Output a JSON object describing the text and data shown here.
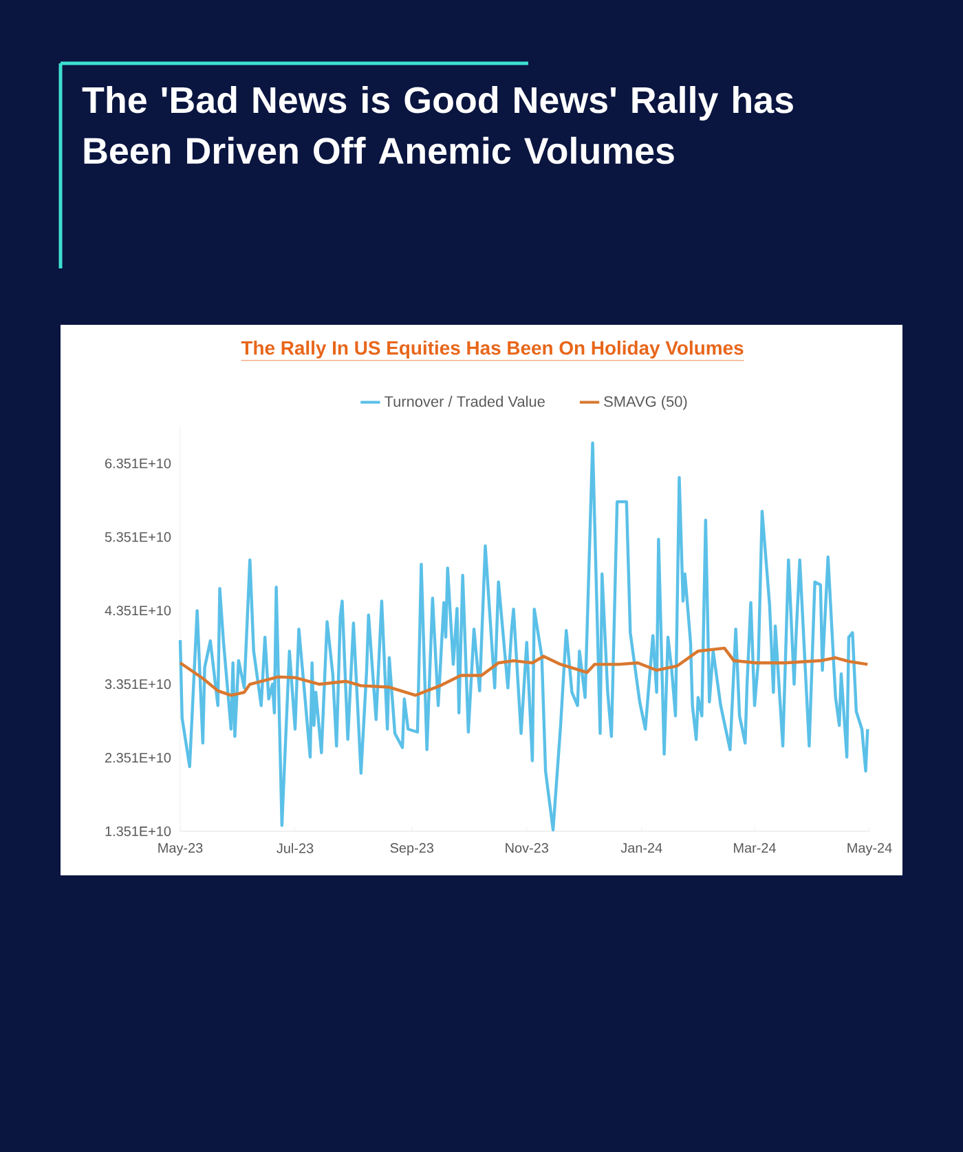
{
  "chart_data": {
    "type": "line",
    "title": "The 'Bad News is Good News' Rally has Been Driven Off Anemic Volumes",
    "subtitle": "The Rally In US Equities Has Been On Holiday Volumes",
    "xlim": [
      "2023-05-01",
      "2024-05-01"
    ],
    "xticks": [
      {
        "value": "2023-05-01",
        "label": "May-23"
      },
      {
        "value": "2023-07-01",
        "label": "Jul-23"
      },
      {
        "value": "2023-09-01",
        "label": "Sep-23"
      },
      {
        "value": "2023-11-01",
        "label": "Nov-23"
      },
      {
        "value": "2024-01-01",
        "label": "Jan-24"
      },
      {
        "value": "2024-03-01",
        "label": "Mar-24"
      },
      {
        "value": "2024-05-01",
        "label": "May-24"
      }
    ],
    "ylim": [
      13510000000.0,
      68510000000.0
    ],
    "yticks": [
      {
        "value": 13510000000.0,
        "label": "1.351E+10"
      },
      {
        "value": 23510000000.0,
        "label": "2.351E+10"
      },
      {
        "value": 33510000000.0,
        "label": "3.351E+10"
      },
      {
        "value": 43510000000.0,
        "label": "4.351E+10"
      },
      {
        "value": 53510000000.0,
        "label": "5.351E+10"
      },
      {
        "value": 63510000000.0,
        "label": "6.351E+10"
      }
    ],
    "legend": "top",
    "grid": false,
    "marker": "none",
    "line_style": "solid",
    "series": [
      {
        "name": "Turnover / Traded Value",
        "color": "#5bc0e8",
        "x": [
          "2023-05-01",
          "2023-05-02",
          "2023-05-06",
          "2023-05-10",
          "2023-05-13",
          "2023-05-14",
          "2023-05-17",
          "2023-05-21",
          "2023-05-22",
          "2023-05-24",
          "2023-05-28",
          "2023-05-29",
          "2023-05-30",
          "2023-06-01",
          "2023-06-04",
          "2023-06-07",
          "2023-06-09",
          "2023-06-13",
          "2023-06-15",
          "2023-06-17",
          "2023-06-19",
          "2023-06-20",
          "2023-06-21",
          "2023-06-24",
          "2023-06-28",
          "2023-07-01",
          "2023-07-03",
          "2023-07-06",
          "2023-07-09",
          "2023-07-10",
          "2023-07-11",
          "2023-07-12",
          "2023-07-15",
          "2023-07-18",
          "2023-07-21",
          "2023-07-23",
          "2023-07-25",
          "2023-07-26",
          "2023-07-29",
          "2023-08-01",
          "2023-08-05",
          "2023-08-08",
          "2023-08-09",
          "2023-08-13",
          "2023-08-16",
          "2023-08-19",
          "2023-08-20",
          "2023-08-23",
          "2023-08-27",
          "2023-08-28",
          "2023-08-30",
          "2023-09-04",
          "2023-09-06",
          "2023-09-09",
          "2023-09-12",
          "2023-09-15",
          "2023-09-18",
          "2023-09-19",
          "2023-09-20",
          "2023-09-23",
          "2023-09-25",
          "2023-09-26",
          "2023-09-28",
          "2023-10-01",
          "2023-10-04",
          "2023-10-07",
          "2023-10-10",
          "2023-10-15",
          "2023-10-17",
          "2023-10-22",
          "2023-10-24",
          "2023-10-25",
          "2023-10-29",
          "2023-11-01",
          "2023-11-04",
          "2023-11-05",
          "2023-11-09",
          "2023-11-11",
          "2023-11-15",
          "2023-11-19",
          "2023-11-22",
          "2023-11-25",
          "2023-11-28",
          "2023-11-29",
          "2023-12-02",
          "2023-12-06",
          "2023-12-10",
          "2023-12-11",
          "2023-12-14",
          "2023-12-16",
          "2023-12-19",
          "2023-12-20",
          "2023-12-24",
          "2023-12-26",
          "2023-12-31",
          "2024-01-03",
          "2024-01-07",
          "2024-01-09",
          "2024-01-10",
          "2024-01-13",
          "2024-01-15",
          "2024-01-17",
          "2024-01-19",
          "2024-01-21",
          "2024-01-23",
          "2024-01-24",
          "2024-01-27",
          "2024-01-28",
          "2024-01-30",
          "2024-01-31",
          "2024-02-02",
          "2024-02-04",
          "2024-02-06",
          "2024-02-08",
          "2024-02-12",
          "2024-02-17",
          "2024-02-20",
          "2024-02-22",
          "2024-02-25",
          "2024-02-26",
          "2024-02-28",
          "2024-03-01",
          "2024-03-03",
          "2024-03-05",
          "2024-03-09",
          "2024-03-11",
          "2024-03-12",
          "2024-03-16",
          "2024-03-19",
          "2024-03-22",
          "2024-03-23",
          "2024-03-25",
          "2024-03-30",
          "2024-04-02",
          "2024-04-05",
          "2024-04-06",
          "2024-04-09",
          "2024-04-13",
          "2024-04-15",
          "2024-04-16",
          "2024-04-19",
          "2024-04-20",
          "2024-04-22",
          "2024-04-24",
          "2024-04-27",
          "2024-04-29",
          "2024-04-30"
        ],
        "values": [
          39500000000.0,
          28900000000.0,
          22300000000.0,
          43500000000.0,
          25500000000.0,
          35800000000.0,
          39400000000.0,
          30600000000.0,
          46500000000.0,
          39200000000.0,
          27400000000.0,
          36400000000.0,
          26400000000.0,
          36700000000.0,
          33000000000.0,
          50400000000.0,
          38000000000.0,
          30600000000.0,
          39900000000.0,
          31500000000.0,
          33500000000.0,
          29600000000.0,
          46700000000.0,
          14300000000.0,
          38000000000.0,
          27400000000.0,
          41000000000.0,
          32400000000.0,
          23600000000.0,
          36400000000.0,
          27900000000.0,
          32400000000.0,
          24200000000.0,
          42000000000.0,
          34900000000.0,
          25100000000.0,
          42700000000.0,
          44800000000.0,
          26000000000.0,
          41800000000.0,
          21400000000.0,
          35400000000.0,
          42900000000.0,
          28700000000.0,
          44800000000.0,
          27400000000.0,
          37100000000.0,
          26800000000.0,
          24900000000.0,
          31500000000.0,
          27400000000.0,
          27000000000.0,
          49800000000.0,
          24600000000.0,
          45200000000.0,
          30600000000.0,
          44600000000.0,
          39900000000.0,
          49300000000.0,
          36200000000.0,
          43800000000.0,
          29600000000.0,
          48300000000.0,
          27000000000.0,
          41000000000.0,
          32600000000.0,
          52300000000.0,
          33000000000.0,
          47400000000.0,
          33000000000.0,
          41000000000.0,
          43700000000.0,
          26800000000.0,
          39200000000.0,
          23100000000.0,
          43700000000.0,
          37300000000.0,
          21700000000.0,
          13700000000.0,
          27900000000.0,
          40800000000.0,
          32400000000.0,
          30600000000.0,
          38000000000.0,
          31700000000.0,
          66300000000.0,
          26800000000.0,
          48500000000.0,
          32400000000.0,
          26400000000.0,
          58300000000.0,
          58300000000.0,
          58300000000.0,
          40500000000.0,
          31100000000.0,
          27400000000.0,
          40100000000.0,
          32400000000.0,
          53200000000.0,
          24000000000.0,
          39900000000.0,
          35400000000.0,
          29200000000.0,
          61600000000.0,
          44800000000.0,
          48500000000.0,
          39200000000.0,
          30600000000.0,
          26000000000.0,
          31700000000.0,
          29200000000.0,
          55800000000.0,
          31100000000.0,
          38000000000.0,
          30600000000.0,
          24600000000.0,
          41000000000.0,
          29200000000.0,
          25500000000.0,
          33500000000.0,
          44600000000.0,
          30600000000.0,
          36700000000.0,
          57000000000.0,
          44200000000.0,
          32400000000.0,
          41400000000.0,
          25100000000.0,
          50400000000.0,
          33500000000.0,
          39900000000.0,
          50400000000.0,
          25100000000.0,
          47400000000.0,
          47000000000.0,
          35400000000.0,
          50800000000.0,
          31700000000.0,
          27900000000.0,
          34900000000.0,
          23600000000.0,
          39900000000.0,
          40500000000.0,
          29800000000.0,
          27400000000.0,
          21700000000.0,
          27400000000.0
        ]
      },
      {
        "name": "SMAVG (50)",
        "color": "#d9782f",
        "x": [
          "2023-05-01",
          "2023-05-13",
          "2023-05-21",
          "2023-05-28",
          "2023-06-04",
          "2023-06-07",
          "2023-06-22",
          "2023-07-01",
          "2023-07-14",
          "2023-07-28",
          "2023-08-05",
          "2023-08-20",
          "2023-09-03",
          "2023-09-16",
          "2023-09-27",
          "2023-10-08",
          "2023-10-17",
          "2023-10-25",
          "2023-11-04",
          "2023-11-10",
          "2023-11-19",
          "2023-12-03",
          "2023-12-07",
          "2023-12-20",
          "2023-12-30",
          "2024-01-09",
          "2024-01-20",
          "2024-01-31",
          "2024-02-14",
          "2024-02-19",
          "2024-03-02",
          "2024-03-17",
          "2024-04-05",
          "2024-04-13",
          "2024-04-20",
          "2024-04-30"
        ],
        "values": [
          36400000000.0,
          34300000000.0,
          32600000000.0,
          32000000000.0,
          32400000000.0,
          33500000000.0,
          34500000000.0,
          34400000000.0,
          33500000000.0,
          33900000000.0,
          33300000000.0,
          33100000000.0,
          32000000000.0,
          33300000000.0,
          34700000000.0,
          34700000000.0,
          36400000000.0,
          36700000000.0,
          36400000000.0,
          37300000000.0,
          36200000000.0,
          35100000000.0,
          36200000000.0,
          36200000000.0,
          36400000000.0,
          35400000000.0,
          36000000000.0,
          38000000000.0,
          38400000000.0,
          36700000000.0,
          36400000000.0,
          36400000000.0,
          36700000000.0,
          37100000000.0,
          36600000000.0,
          36200000000.0
        ]
      }
    ]
  }
}
